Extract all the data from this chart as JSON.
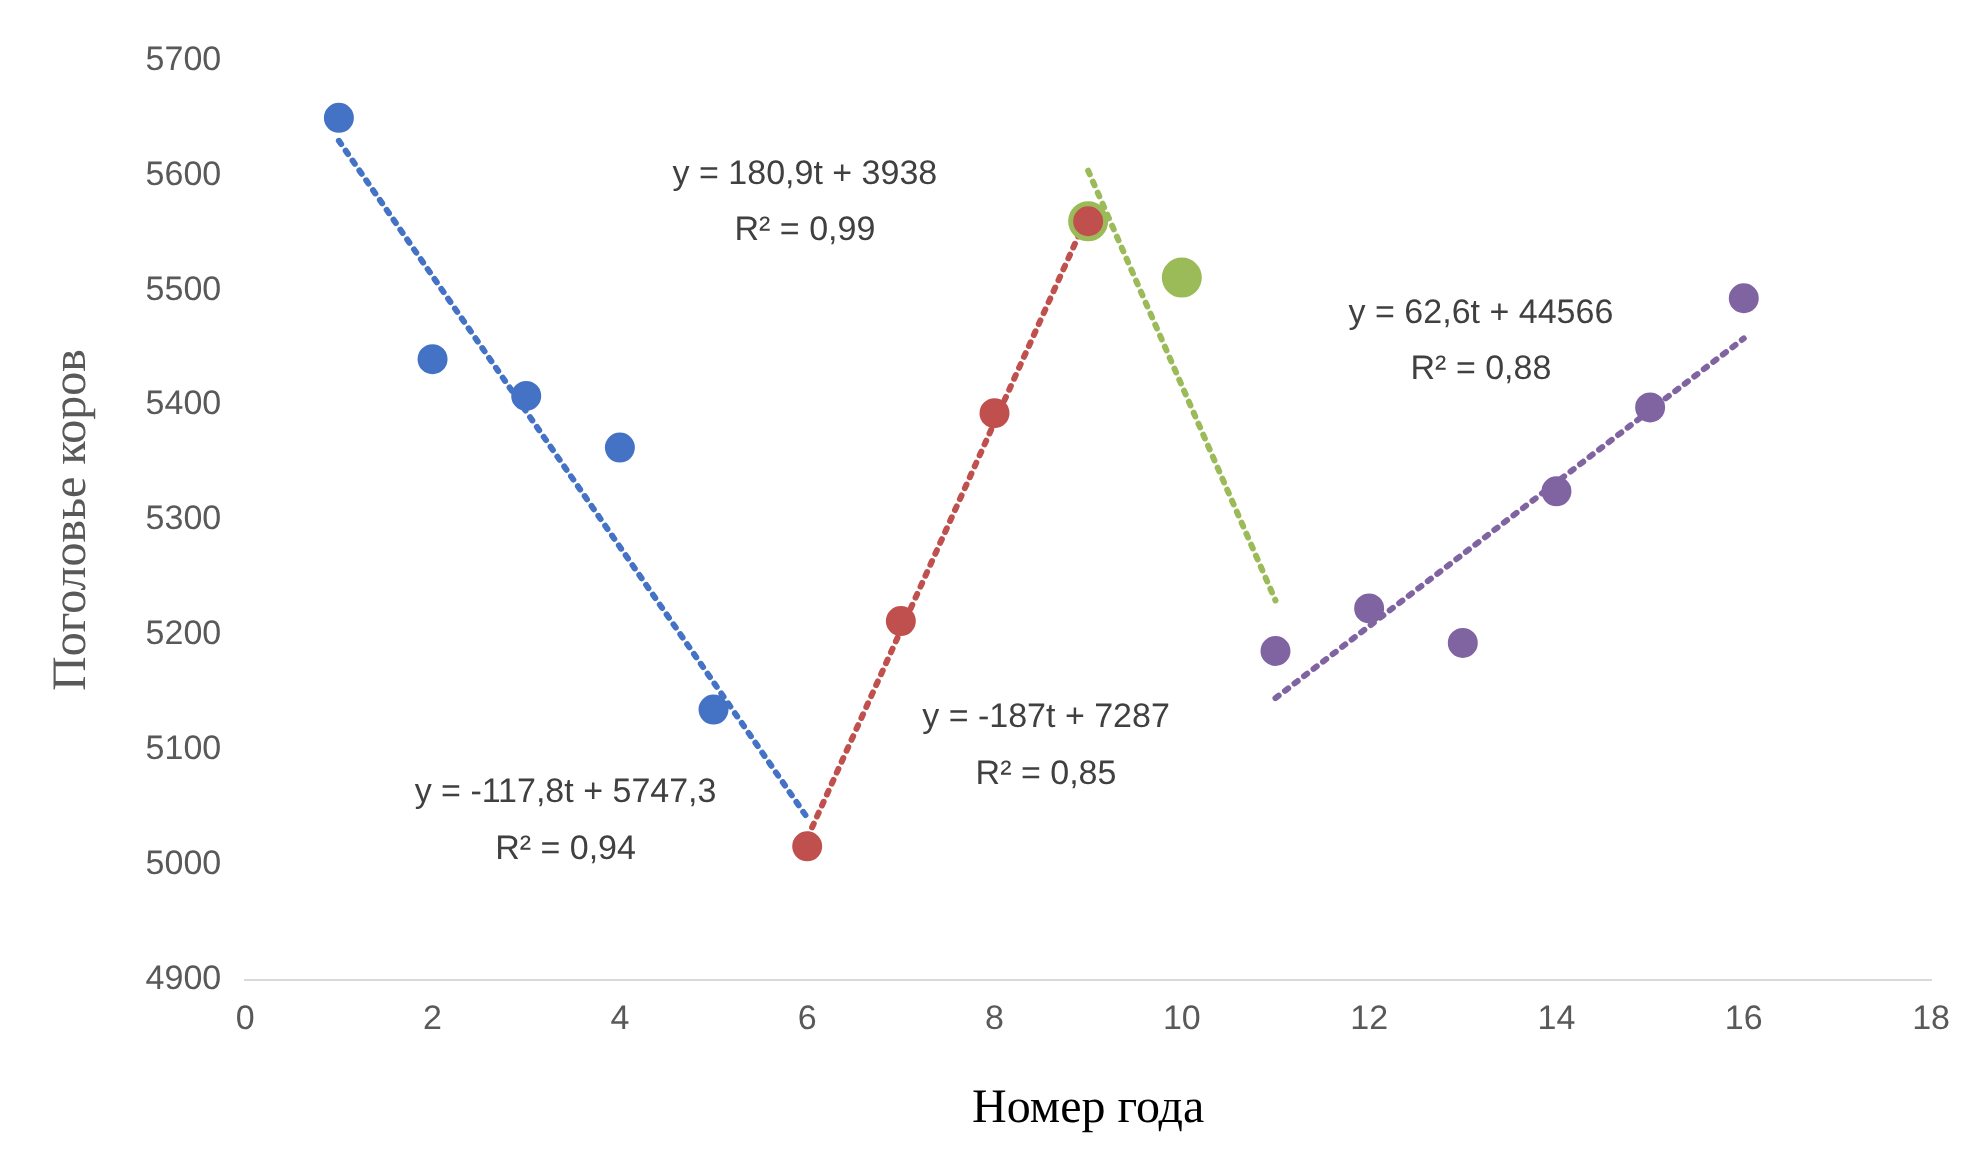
{
  "chart_data": {
    "type": "scatter",
    "xlabel": "Номер года",
    "ylabel": "Поголовье коров",
    "xlim": [
      0,
      18
    ],
    "xticks": [
      0,
      2,
      4,
      6,
      8,
      10,
      12,
      14,
      16,
      18
    ],
    "ylim": [
      4900,
      5700
    ],
    "yticks": [
      4900,
      5000,
      5100,
      5200,
      5300,
      5400,
      5500,
      5600,
      5700
    ],
    "legend": false,
    "marker": "circle",
    "series": [
      {
        "type": "scatter",
        "color": "#4472c4",
        "x": [
          1,
          2,
          3,
          4,
          5
        ],
        "values": [
          5650,
          5440,
          5408,
          5363,
          5135
        ]
      },
      {
        "type": "scatter",
        "color": "#c0504d",
        "x": [
          6,
          7,
          8,
          9
        ],
        "values": [
          5016,
          5212,
          5393,
          5560
        ]
      },
      {
        "type": "scatter",
        "color": "#9bbb59",
        "x": [
          9,
          10
        ],
        "values": [
          5560,
          5511
        ]
      },
      {
        "type": "scatter",
        "color": "#8064a2",
        "x": [
          11,
          12,
          13,
          14,
          15,
          16
        ],
        "values": [
          5186,
          5223,
          5193,
          5325,
          5398,
          5493
        ]
      },
      {
        "type": "line",
        "line_style": "dotted",
        "marker": "none",
        "color": "#4472c4",
        "x": [
          1,
          6
        ],
        "values": [
          5630,
          5041
        ]
      },
      {
        "type": "line",
        "line_style": "dotted",
        "marker": "none",
        "color": "#c0504d",
        "x": [
          6,
          9
        ],
        "values": [
          5023,
          5566
        ]
      },
      {
        "type": "line",
        "line_style": "dotted",
        "marker": "none",
        "color": "#9bbb59",
        "x": [
          9,
          11
        ],
        "values": [
          5604,
          5230
        ]
      },
      {
        "type": "line",
        "line_style": "dotted",
        "marker": "none",
        "color": "#8064a2",
        "x": [
          11,
          16
        ],
        "values": [
          5145,
          5458
        ]
      }
    ],
    "annotations": [
      "y = -117,8t + 5747,3",
      "R² = 0,94",
      "y = 180,9t + 3938",
      "R² = 0,99",
      "y = -187t + 7287",
      "R² = 0,85",
      "y = 62,6t + 44566",
      "R² = 0,88"
    ]
  }
}
